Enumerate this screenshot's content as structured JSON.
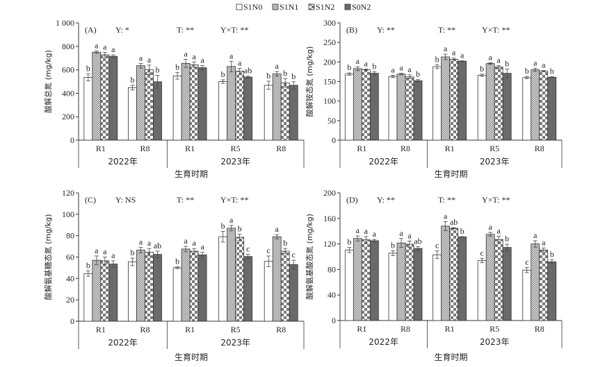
{
  "legend": [
    {
      "label": "S1N0",
      "fill": "white"
    },
    {
      "label": "S1N1",
      "fill": "dots"
    },
    {
      "label": "S1N2",
      "fill": "checker"
    },
    {
      "label": "S0N2",
      "fill": "dark"
    }
  ],
  "colors": {
    "dark": "#6a6a6a",
    "checker": "#7a7a7a",
    "dots": "#9a9a9a",
    "axis": "#333333"
  },
  "xlabel": "生育时期",
  "groups": [
    "R1",
    "R8",
    "R1",
    "R5",
    "R8"
  ],
  "years": [
    {
      "label": "2022年",
      "span": 2
    },
    {
      "label": "2023年",
      "span": 3
    }
  ],
  "chart_data": [
    {
      "type": "bar",
      "panel": "(A)",
      "ylabel": "酸解总氮 (mg/kg)",
      "ylim": [
        0,
        1000
      ],
      "yticks": [
        0,
        200,
        400,
        600,
        800,
        1000
      ],
      "ytick_labels": [
        "0",
        "200",
        "400",
        "600",
        "800",
        "1 000"
      ],
      "stats": [
        "Y: *",
        "T: **",
        "Y×T: **"
      ],
      "values": [
        [
          535,
          750,
          728,
          715
        ],
        [
          448,
          635,
          600,
          498
        ],
        [
          548,
          655,
          642,
          618
        ],
        [
          500,
          628,
          588,
          538
        ],
        [
          468,
          565,
          488,
          468
        ]
      ],
      "errors": [
        [
          30,
          10,
          20,
          12
        ],
        [
          20,
          20,
          40,
          55
        ],
        [
          28,
          35,
          25,
          18
        ],
        [
          15,
          45,
          25,
          8
        ],
        [
          35,
          20,
          35,
          30
        ]
      ],
      "letters": [
        [
          "b",
          "a",
          "a",
          "a"
        ],
        [
          "b",
          "a",
          "a",
          "b"
        ],
        [
          "b",
          "a",
          "a",
          "a"
        ],
        [
          "b",
          "a",
          "a",
          "ab"
        ],
        [
          "b",
          "a",
          "b",
          "b"
        ]
      ]
    },
    {
      "type": "bar",
      "panel": "(B)",
      "ylabel": "酸解铵态氮 (mg/kg)",
      "ylim": [
        0,
        300
      ],
      "yticks": [
        0,
        50,
        100,
        150,
        200,
        250,
        300
      ],
      "ytick_labels": [
        "0",
        "50",
        "100",
        "150",
        "200",
        "250",
        "300"
      ],
      "stats": [
        "Y: **",
        "T: **",
        "Y×T: **"
      ],
      "values": [
        [
          169,
          183,
          180,
          171
        ],
        [
          163,
          169,
          162,
          152
        ],
        [
          188,
          213,
          207,
          202
        ],
        [
          166,
          196,
          187,
          171
        ],
        [
          160,
          180,
          177,
          161
        ]
      ],
      "errors": [
        [
          3,
          5,
          2,
          4
        ],
        [
          3,
          2,
          5,
          3
        ],
        [
          5,
          7,
          3,
          1
        ],
        [
          3,
          2,
          4,
          11
        ],
        [
          3,
          4,
          1,
          1
        ]
      ],
      "letters": [
        [
          "b",
          "a",
          "a",
          "b"
        ],
        [
          "a",
          "a",
          "a",
          "b"
        ],
        [
          "b",
          "a",
          "a",
          "a"
        ],
        [
          "b",
          "a",
          "a",
          "b"
        ],
        [
          "b",
          "a",
          "a",
          "b"
        ]
      ]
    },
    {
      "type": "bar",
      "panel": "(C)",
      "ylabel": "酸解氨基糖态氮 (mg/kg)",
      "ylim": [
        0,
        120
      ],
      "yticks": [
        0,
        20,
        40,
        60,
        80,
        100,
        120
      ],
      "ytick_labels": [
        "0",
        "20",
        "40",
        "60",
        "80",
        "100",
        "120"
      ],
      "stats": [
        "Y: NS",
        "T: **",
        "Y×T: **"
      ],
      "values": [
        [
          44.5,
          57,
          56.5,
          53.5
        ],
        [
          55.5,
          66.5,
          64.5,
          62.5
        ],
        [
          50,
          67.5,
          65.5,
          62
        ],
        [
          79,
          87,
          78.5,
          60.5
        ],
        [
          56,
          79,
          65.5,
          53
        ]
      ],
      "errors": [
        [
          2.5,
          4,
          3.5,
          3
        ],
        [
          3.5,
          2.5,
          3.5,
          3
        ],
        [
          0.8,
          2.5,
          2.5,
          2.5
        ],
        [
          5,
          2.5,
          3,
          2
        ],
        [
          5,
          2,
          2.5,
          4
        ]
      ],
      "letters": [
        [
          "b",
          "a",
          "a",
          "a"
        ],
        [
          "b",
          "a",
          "a",
          "ab"
        ],
        [
          "b",
          "a",
          "a",
          "a"
        ],
        [
          "b",
          "a",
          "b",
          "c"
        ],
        [
          "c",
          "a",
          "b",
          "c"
        ]
      ]
    },
    {
      "type": "bar",
      "panel": "(D)",
      "ylabel": "酸解氨基酸态氮 (mg/kg)",
      "ylim": [
        0,
        200
      ],
      "yticks": [
        0,
        40,
        80,
        120,
        160,
        200
      ],
      "ytick_labels": [
        "0",
        "40",
        "80",
        "120",
        "160",
        "200"
      ],
      "stats": [
        "Y: **",
        "T: **",
        "Y×T: **"
      ],
      "values": [
        [
          110.5,
          128.5,
          126.5,
          125
        ],
        [
          105.5,
          121.5,
          119.5,
          113
        ],
        [
          103,
          148,
          144.5,
          131
        ],
        [
          94,
          135,
          127,
          114.5
        ],
        [
          79,
          120,
          110.5,
          92
        ]
      ],
      "errors": [
        [
          4,
          4,
          5,
          2
        ],
        [
          4,
          7,
          5,
          3
        ],
        [
          6,
          7,
          1,
          0.5
        ],
        [
          3.5,
          3,
          5,
          5
        ],
        [
          4,
          5,
          3,
          3
        ]
      ],
      "letters": [
        [
          "b",
          "a",
          "a",
          "a"
        ],
        [
          "b",
          "a",
          "a",
          "ab"
        ],
        [
          "c",
          "a",
          "ab",
          "b"
        ],
        [
          "c",
          "a",
          "a",
          "b"
        ],
        [
          "c",
          "a",
          "a",
          "b"
        ]
      ]
    }
  ]
}
